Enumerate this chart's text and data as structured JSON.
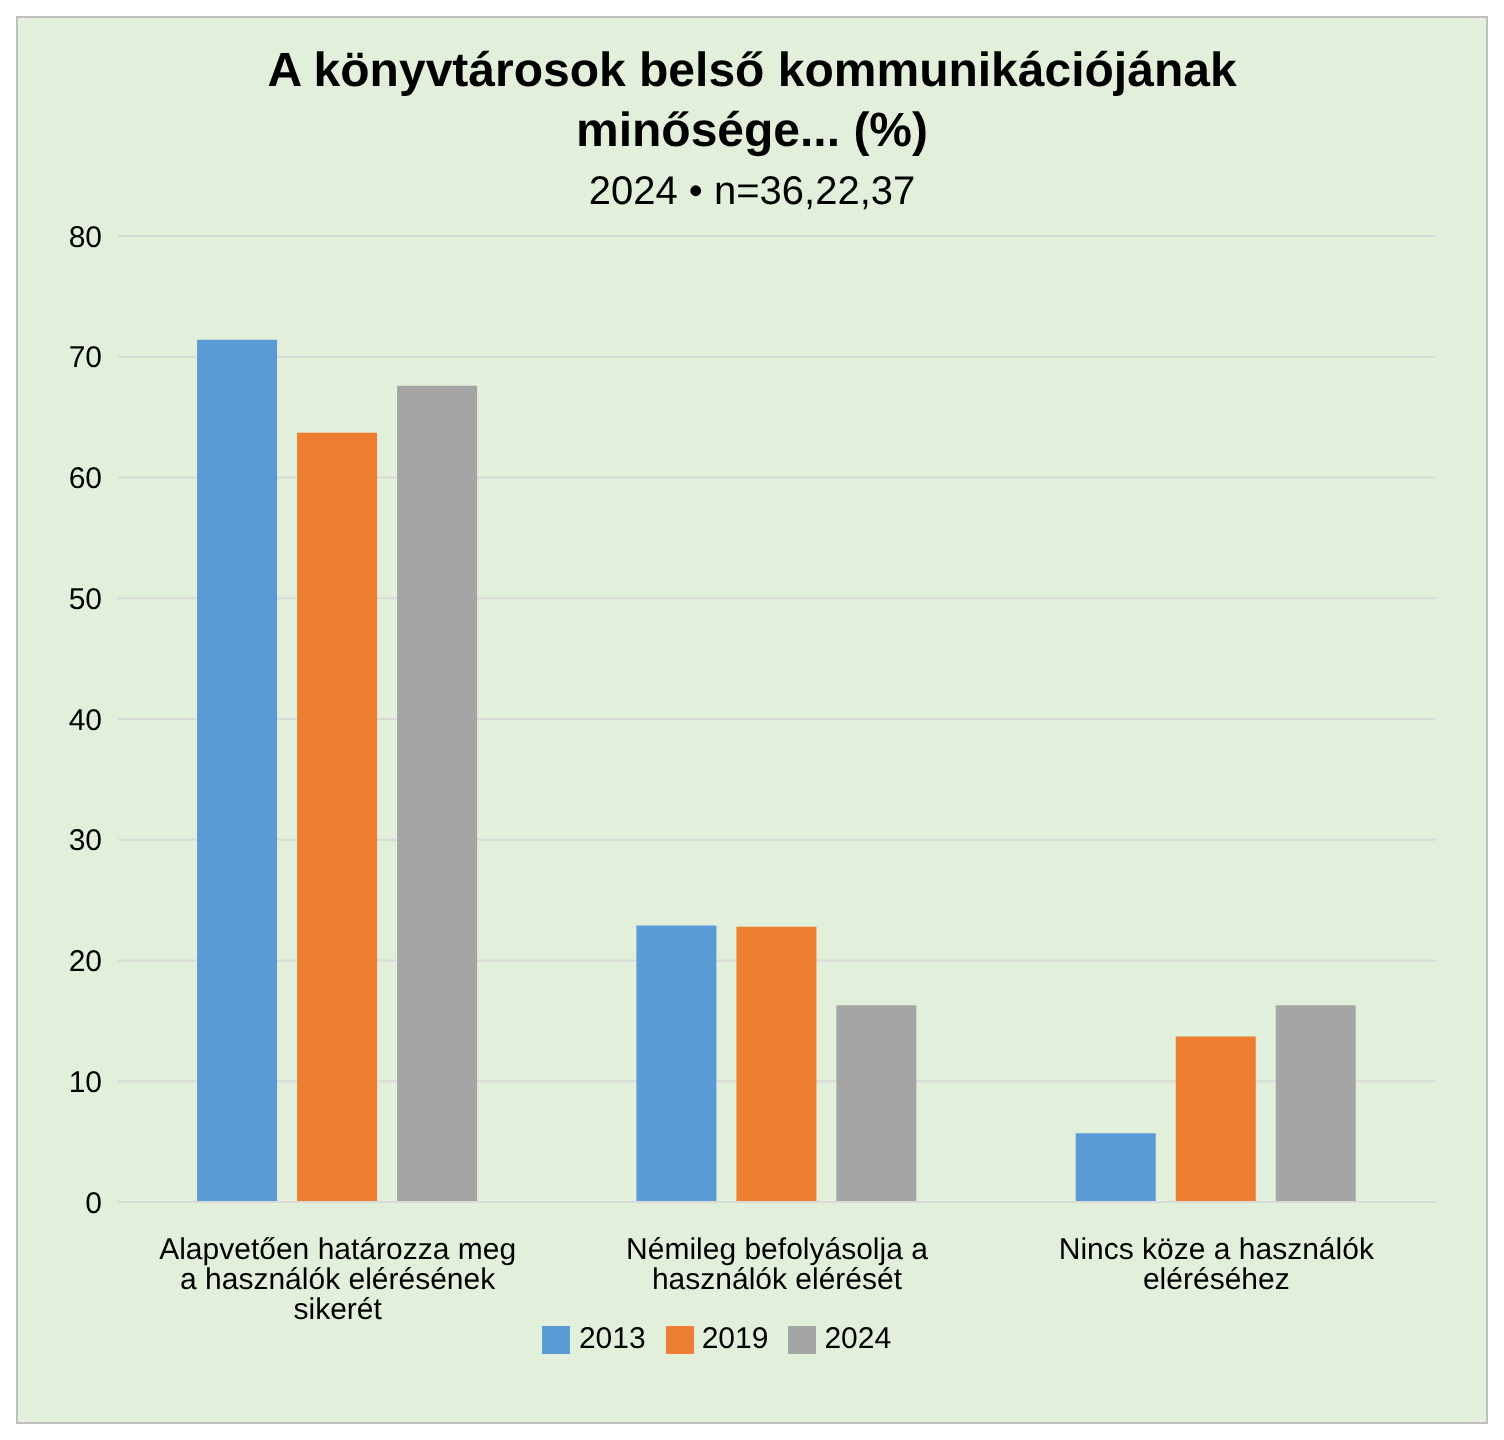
{
  "chart_data": {
    "type": "bar",
    "title": "A könyvtárosok belső kommunikációjának minősége... (%)",
    "subtitle": "2024 • n=36,22,37",
    "categories": [
      "Alapvetően határozza meg a használók elérésének sikerét",
      "Némileg befolyásolja a használók elérését",
      "Nincs köze a használók eléréséhez"
    ],
    "series": [
      {
        "name": "2013",
        "color": "#5b9bd5",
        "values": [
          71.4,
          22.9,
          5.7
        ]
      },
      {
        "name": "2019",
        "color": "#ed7d31",
        "values": [
          63.7,
          22.8,
          13.7
        ]
      },
      {
        "name": "2024",
        "color": "#a5a5a5",
        "values": [
          67.6,
          16.3,
          16.3
        ]
      }
    ],
    "ylim": [
      0,
      80
    ],
    "yticks": [
      0,
      10,
      20,
      30,
      40,
      50,
      60,
      70,
      80
    ],
    "grid": "y",
    "legend": "bottom"
  }
}
